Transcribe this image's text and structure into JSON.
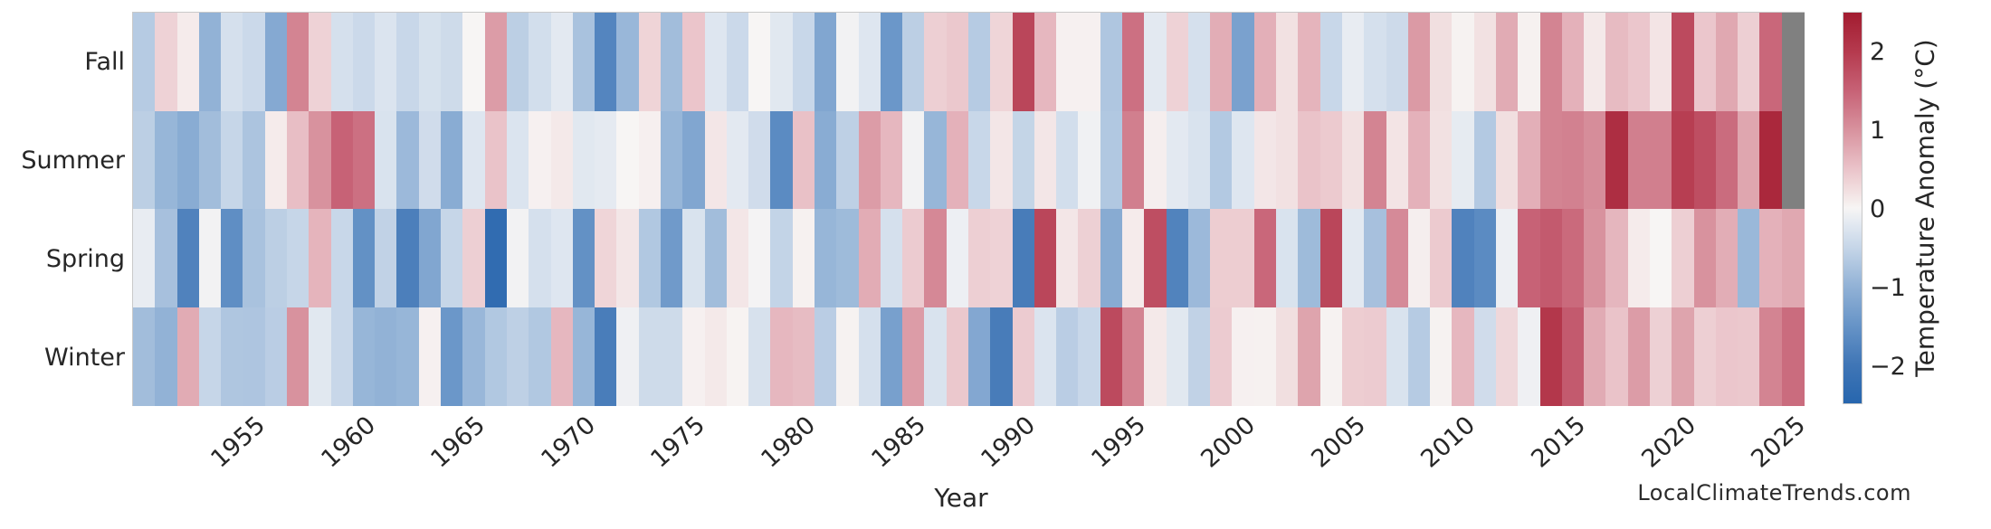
{
  "figure": {
    "watermark": "LocalClimateTrends.com"
  },
  "chart_data": {
    "type": "heatmap",
    "title": "",
    "xlabel": "Year",
    "ylabel": "",
    "rows": [
      "Fall",
      "Summer",
      "Spring",
      "Winter"
    ],
    "years": [
      1950,
      1951,
      1952,
      1953,
      1954,
      1955,
      1956,
      1957,
      1958,
      1959,
      1960,
      1961,
      1962,
      1963,
      1964,
      1965,
      1966,
      1967,
      1968,
      1969,
      1970,
      1971,
      1972,
      1973,
      1974,
      1975,
      1976,
      1977,
      1978,
      1979,
      1980,
      1981,
      1982,
      1983,
      1984,
      1985,
      1986,
      1987,
      1988,
      1989,
      1990,
      1991,
      1992,
      1993,
      1994,
      1995,
      1996,
      1997,
      1998,
      1999,
      2000,
      2001,
      2002,
      2003,
      2004,
      2005,
      2006,
      2007,
      2008,
      2009,
      2010,
      2011,
      2012,
      2013,
      2014,
      2015,
      2016,
      2017,
      2018,
      2019,
      2020,
      2021,
      2022,
      2023,
      2024,
      2025
    ],
    "x_ticks": [
      1955,
      1960,
      1965,
      1970,
      1975,
      1980,
      1985,
      1990,
      1995,
      2000,
      2005,
      2010,
      2015,
      2020,
      2025
    ],
    "series": [
      {
        "name": "Fall",
        "values": [
          -0.65,
          0.35,
          0.1,
          -1.0,
          -0.35,
          -0.45,
          -1.15,
          1.15,
          0.35,
          -0.35,
          -0.45,
          -0.28,
          -0.48,
          -0.33,
          -0.42,
          0.0,
          0.9,
          -0.6,
          -0.38,
          -0.2,
          -0.78,
          -1.75,
          -0.93,
          0.33,
          -0.85,
          0.48,
          -0.25,
          -0.45,
          0.0,
          -0.22,
          -0.48,
          -1.2,
          -0.05,
          -0.25,
          -1.45,
          -0.6,
          0.38,
          0.45,
          -0.65,
          0.32,
          1.85,
          0.62,
          0.05,
          0.05,
          -0.72,
          1.35,
          -0.2,
          0.35,
          -0.35,
          0.72,
          -1.28,
          0.7,
          0.2,
          0.65,
          -0.48,
          -0.15,
          -0.35,
          -0.43,
          0.92,
          0.22,
          0.03,
          0.2,
          0.75,
          0.04,
          1.15,
          0.68,
          0.12,
          0.58,
          0.47,
          0.17,
          1.8,
          0.47,
          0.78,
          0.38,
          1.45,
          null
        ]
      },
      {
        "name": "Summer",
        "values": [
          -0.6,
          -0.95,
          -1.1,
          -0.85,
          -0.5,
          -0.75,
          0.1,
          0.55,
          1.0,
          1.5,
          1.35,
          -0.3,
          -0.9,
          -0.4,
          -1.1,
          -0.25,
          0.5,
          -0.28,
          0.05,
          0.12,
          -0.22,
          -0.18,
          0.0,
          0.06,
          -0.95,
          -1.2,
          0.15,
          -0.2,
          -0.4,
          -1.65,
          0.52,
          -1.1,
          -0.58,
          0.9,
          0.62,
          -0.05,
          -0.95,
          0.68,
          -0.48,
          0.15,
          -0.52,
          0.15,
          -0.38,
          -0.07,
          -0.7,
          1.2,
          0.07,
          -0.2,
          -0.3,
          -0.68,
          -0.25,
          0.15,
          0.2,
          0.5,
          0.43,
          0.2,
          1.15,
          0.17,
          0.68,
          0.2,
          -0.17,
          -0.68,
          0.22,
          0.7,
          1.15,
          1.18,
          1.05,
          2.2,
          1.2,
          1.2,
          1.95,
          1.75,
          1.4,
          0.8,
          2.3,
          null
        ]
      },
      {
        "name": "Spring",
        "values": [
          -0.15,
          -0.8,
          -1.8,
          -0.05,
          -1.6,
          -0.78,
          -0.6,
          -0.5,
          0.65,
          -0.48,
          -1.55,
          -0.55,
          -1.85,
          -1.2,
          -0.5,
          0.38,
          -2.3,
          -0.05,
          -0.35,
          -0.25,
          -1.55,
          0.32,
          0.15,
          -0.7,
          -1.4,
          -0.3,
          -0.85,
          0.15,
          -0.03,
          -0.53,
          0.04,
          -0.95,
          -0.88,
          0.73,
          -0.35,
          0.42,
          1.1,
          -0.1,
          0.38,
          0.35,
          -1.9,
          1.85,
          0.15,
          0.37,
          -1.12,
          0.1,
          1.75,
          -1.78,
          -0.9,
          0.4,
          0.4,
          1.45,
          -0.3,
          -0.88,
          1.85,
          -0.2,
          -0.8,
          1.08,
          0.07,
          0.43,
          -1.8,
          -1.65,
          -0.1,
          1.5,
          1.6,
          1.42,
          1.0,
          0.63,
          0.1,
          0.0,
          0.38,
          1.0,
          0.72,
          -0.92,
          0.68,
          0.78
        ]
      },
      {
        "name": "Winter",
        "values": [
          -0.85,
          -1.0,
          0.75,
          -0.5,
          -0.72,
          -0.73,
          -0.62,
          1.0,
          -0.22,
          -0.48,
          -0.95,
          -1.0,
          -0.95,
          0.05,
          -1.45,
          -0.93,
          -0.7,
          -0.58,
          -0.7,
          0.62,
          -0.95,
          -1.88,
          -0.08,
          -0.42,
          -0.42,
          0.05,
          0.12,
          0.02,
          -0.32,
          0.62,
          0.57,
          -0.62,
          0.03,
          -0.35,
          -1.3,
          0.9,
          -0.3,
          0.45,
          -1.18,
          -1.9,
          0.42,
          -0.28,
          -0.62,
          -0.48,
          1.8,
          1.15,
          0.12,
          -0.22,
          -0.55,
          0.42,
          0.05,
          0.04,
          0.22,
          0.82,
          0.03,
          0.4,
          0.42,
          -0.3,
          -0.65,
          0.03,
          0.62,
          -0.4,
          0.3,
          -0.08,
          2.05,
          1.6,
          0.75,
          0.5,
          0.9,
          0.37,
          0.82,
          0.38,
          0.47,
          0.45,
          1.15,
          1.4
        ]
      }
    ],
    "missing_color": "#808080",
    "colormap_stops": [
      [
        -2.5,
        "#2766ae"
      ],
      [
        -2.0,
        "#4076b6"
      ],
      [
        -1.5,
        "#6794c7"
      ],
      [
        -1.0,
        "#92b2d6"
      ],
      [
        -0.5,
        "#c6d6e8"
      ],
      [
        -0.2,
        "#e3e9f1"
      ],
      [
        0.0,
        "#f7f5f4"
      ],
      [
        0.2,
        "#f2e1e2"
      ],
      [
        0.5,
        "#eac3c9"
      ],
      [
        1.0,
        "#d8929e"
      ],
      [
        1.5,
        "#c76276"
      ],
      [
        2.0,
        "#b53a4e"
      ],
      [
        2.5,
        "#a21c30"
      ]
    ],
    "colorbar": {
      "label": "Temperature Anomaly (°C)",
      "ticks": [
        2,
        1,
        0,
        -1,
        -2
      ],
      "vmin": -2.5,
      "vmax": 2.5
    },
    "legend_position": "right",
    "grid": false
  }
}
